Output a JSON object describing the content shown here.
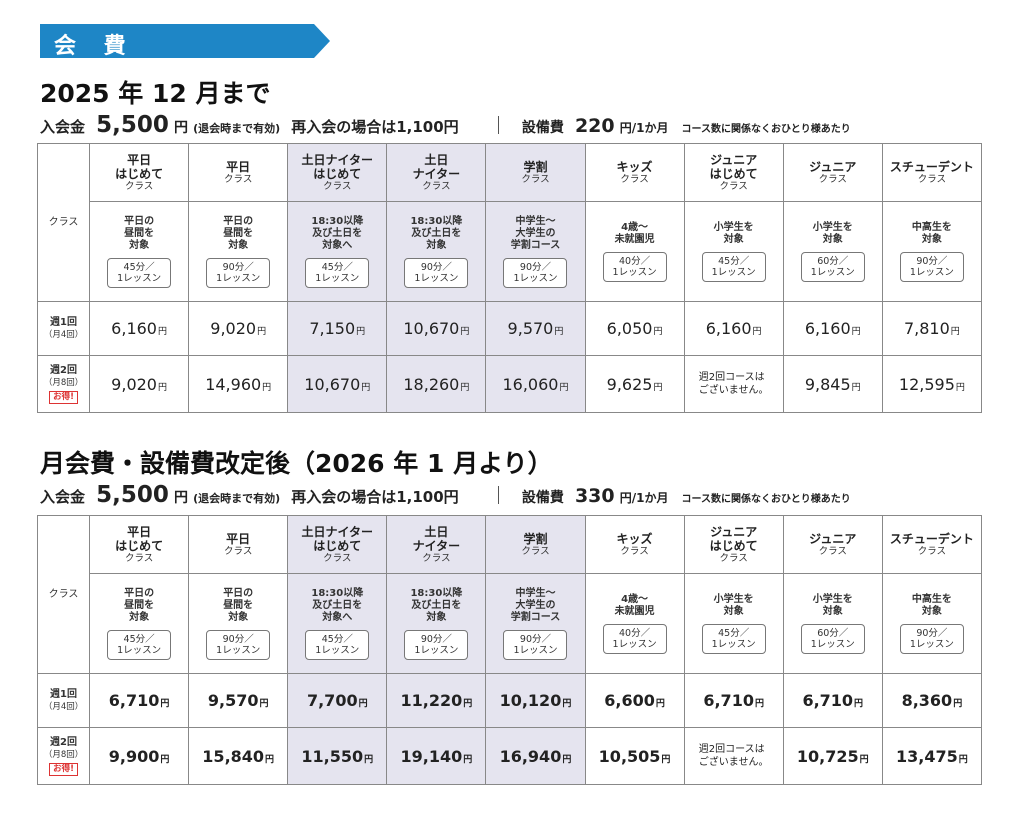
{
  "banner": {
    "title": "会 費",
    "color": "#1e86c6"
  },
  "sections": [
    {
      "title": "2025 年 12 月まで",
      "fees": {
        "entry_label": "入会金",
        "entry_amount": "5,500",
        "entry_unit": "円",
        "entry_note": "(退会時まで有効)",
        "reentry": "再入会の場合は1,100円",
        "equip_label": "設備費",
        "equip_amount": "220",
        "equip_unit": "円/1か月",
        "equip_note": "コース数に関係なくおひとり様あたり"
      }
    },
    {
      "title": "月会費・設備費改定後（2026 年 1 月より）",
      "fees": {
        "entry_label": "入会金",
        "entry_amount": "5,500",
        "entry_unit": "円",
        "entry_note": "(退会時まで有効)",
        "reentry": "再入会の場合は1,100円",
        "equip_label": "設備費",
        "equip_amount": "330",
        "equip_unit": "円/1か月",
        "equip_note": "コース数に関係なくおひとり様あたり"
      }
    }
  ],
  "table": {
    "class_label": "クラス",
    "class_word": "クラス",
    "highlight_color": "#e5e4ef",
    "columns": [
      {
        "name_l1": "平日",
        "name_l2": "はじめて",
        "desc_l1": "平日の",
        "desc_l2": "昼間を",
        "desc_l3": "対象",
        "dur_l1": "45分／",
        "dur_l2": "1レッスン"
      },
      {
        "name_l1": "平日",
        "name_l2": "",
        "desc_l1": "平日の",
        "desc_l2": "昼間を",
        "desc_l3": "対象",
        "dur_l1": "90分／",
        "dur_l2": "1レッスン"
      },
      {
        "name_l1": "土日ナイター",
        "name_l2": "はじめて",
        "desc_l1": "18:30以降",
        "desc_l2": "及び土日を",
        "desc_l3": "対象へ",
        "dur_l1": "45分／",
        "dur_l2": "1レッスン"
      },
      {
        "name_l1": "土日",
        "name_l2": "ナイター",
        "desc_l1": "18:30以降",
        "desc_l2": "及び土日を",
        "desc_l3": "対象",
        "dur_l1": "90分／",
        "dur_l2": "1レッスン"
      },
      {
        "name_l1": "学割",
        "name_l2": "",
        "desc_l1": "中学生～",
        "desc_l2": "大学生の",
        "desc_l3": "学割コース",
        "dur_l1": "90分／",
        "dur_l2": "1レッスン"
      },
      {
        "name_l1": "キッズ",
        "name_l2": "",
        "desc_l1": "4歳～",
        "desc_l2": "未就園児",
        "desc_l3": "",
        "dur_l1": "40分／",
        "dur_l2": "1レッスン"
      },
      {
        "name_l1": "ジュニア",
        "name_l2": "はじめて",
        "desc_l1": "小学生を",
        "desc_l2": "対象",
        "desc_l3": "",
        "dur_l1": "45分／",
        "dur_l2": "1レッスン"
      },
      {
        "name_l1": "ジュニア",
        "name_l2": "",
        "desc_l1": "小学生を",
        "desc_l2": "対象",
        "desc_l3": "",
        "dur_l1": "60分／",
        "dur_l2": "1レッスン"
      },
      {
        "name_l1": "スチューデント",
        "name_l2": "",
        "desc_l1": "中高生を",
        "desc_l2": "対象",
        "desc_l3": "",
        "dur_l1": "90分／",
        "dur_l2": "1レッスン"
      }
    ],
    "rows": [
      {
        "label": "週1回",
        "sub": "（月4回）",
        "badge": ""
      },
      {
        "label": "週2回",
        "sub": "（月8回）",
        "badge": "お得!"
      }
    ],
    "yen": "円",
    "na_l1": "週2回コースは",
    "na_l2": "ございません。",
    "prices_2025": [
      [
        "6,160",
        "9,020",
        "7,150",
        "10,670",
        "9,570",
        "6,050",
        "6,160",
        "6,160",
        "7,810"
      ],
      [
        "9,020",
        "14,960",
        "10,670",
        "18,260",
        "16,060",
        "9,625",
        "",
        "9,845",
        "12,595"
      ]
    ],
    "prices_2026": [
      [
        "6,710",
        "9,570",
        "7,700",
        "11,220",
        "10,120",
        "6,600",
        "6,710",
        "6,710",
        "8,360"
      ],
      [
        "9,900",
        "15,840",
        "11,550",
        "19,140",
        "16,940",
        "10,505",
        "",
        "10,725",
        "13,475"
      ]
    ]
  }
}
